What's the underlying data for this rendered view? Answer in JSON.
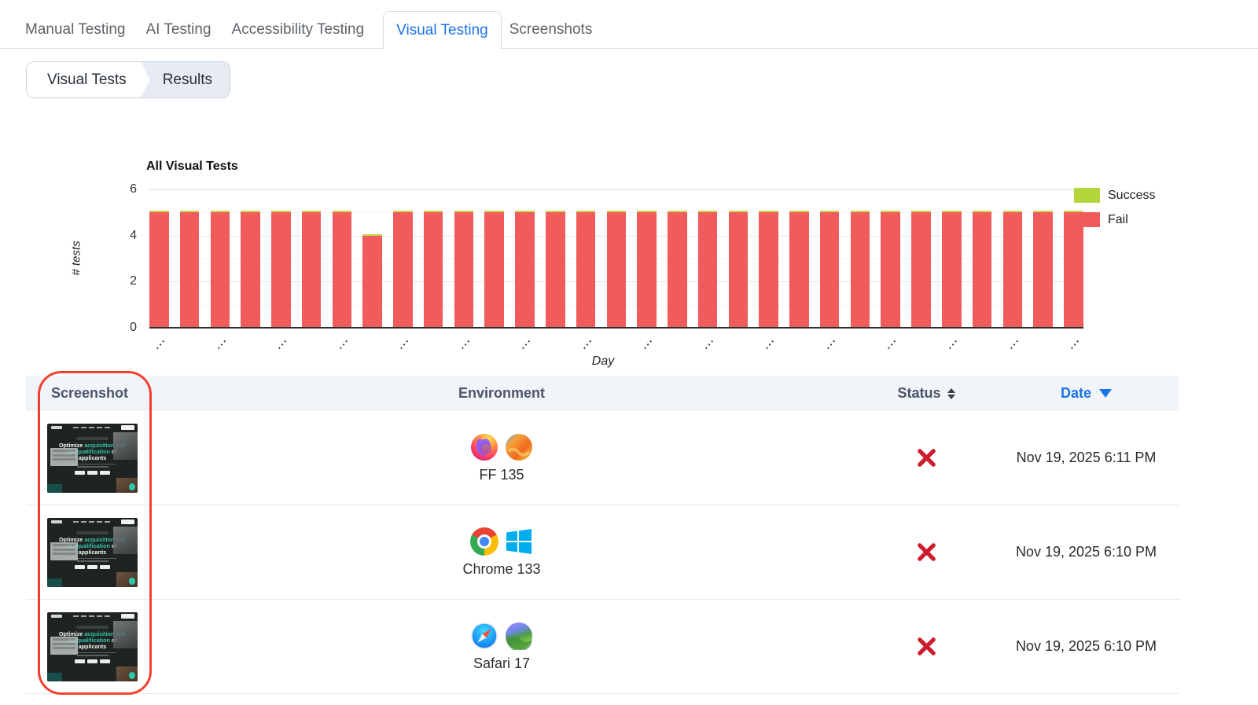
{
  "tabs": [
    {
      "label": "Manual Testing",
      "active": false
    },
    {
      "label": "AI Testing",
      "active": false
    },
    {
      "label": "Accessibility Testing",
      "active": false
    },
    {
      "label": "Visual Testing",
      "active": true
    },
    {
      "label": "Screenshots",
      "active": false
    }
  ],
  "breadcrumb": {
    "items": [
      "Visual Tests",
      "Results"
    ]
  },
  "colors": {
    "accent_blue": "#1a73e8",
    "fail_red": "#f15b5b",
    "success_green": "#b5d63a",
    "status_x_red": "#ce1e2e",
    "annotation_red": "#f4402e",
    "thumb_accent_teal": "#35c3a4"
  },
  "chart_data": {
    "type": "bar",
    "stacked": true,
    "title": "All Visual Tests",
    "xlabel": "Day",
    "ylabel": "# tests",
    "ylim": [
      0,
      6
    ],
    "yticks": [
      0,
      2,
      4,
      6
    ],
    "grid": true,
    "legend_position": "right",
    "x_count": 31,
    "xticklabels": "tiny rotated dot marks under every other bar (labels unreadable)",
    "series": [
      {
        "name": "Fail",
        "color": "#f15b5b",
        "values": [
          5,
          5,
          5,
          5,
          5,
          5,
          5,
          4,
          5,
          5,
          5,
          5,
          5,
          5,
          5,
          5,
          5,
          5,
          5,
          5,
          5,
          5,
          5,
          5,
          5,
          5,
          5,
          5,
          5,
          5,
          5
        ]
      },
      {
        "name": "Success",
        "color": "#b5d63a",
        "values": [
          0.07,
          0.07,
          0.07,
          0.07,
          0.07,
          0.07,
          0.07,
          0.07,
          0.07,
          0.07,
          0.07,
          0.07,
          0.07,
          0.07,
          0.07,
          0.07,
          0.07,
          0.07,
          0.07,
          0.07,
          0.07,
          0.07,
          0.07,
          0.07,
          0.07,
          0.07,
          0.07,
          0.07,
          0.07,
          0.07,
          0.07
        ]
      }
    ]
  },
  "table": {
    "headers": {
      "screenshot": "Screenshot",
      "environment": "Environment",
      "status": "Status",
      "date": "Date",
      "status_sort": "unsorted",
      "date_sort": "descending"
    },
    "rows": [
      {
        "environment": {
          "label": "FF 135",
          "icons": [
            "firefox-icon",
            "macos-ventura-icon"
          ]
        },
        "status": "fail",
        "date": "Nov 19, 2025 6:11 PM"
      },
      {
        "environment": {
          "label": "Chrome 133",
          "icons": [
            "chrome-icon",
            "windows-icon"
          ]
        },
        "status": "fail",
        "date": "Nov 19, 2025 6:10 PM"
      },
      {
        "environment": {
          "label": "Safari 17",
          "icons": [
            "safari-icon",
            "macos-sonoma-icon"
          ]
        },
        "status": "fail",
        "date": "Nov 19, 2025 6:10 PM"
      }
    ]
  },
  "thumbnail": {
    "headline_parts": [
      {
        "text": "Optimize ",
        "accent": false
      },
      {
        "text": "acquisition",
        "accent": true
      },
      {
        "text": " and ",
        "accent": true
      },
      {
        "text": "prequalification",
        "accent": true
      },
      {
        "text": " of applicants",
        "accent": false
      }
    ]
  }
}
